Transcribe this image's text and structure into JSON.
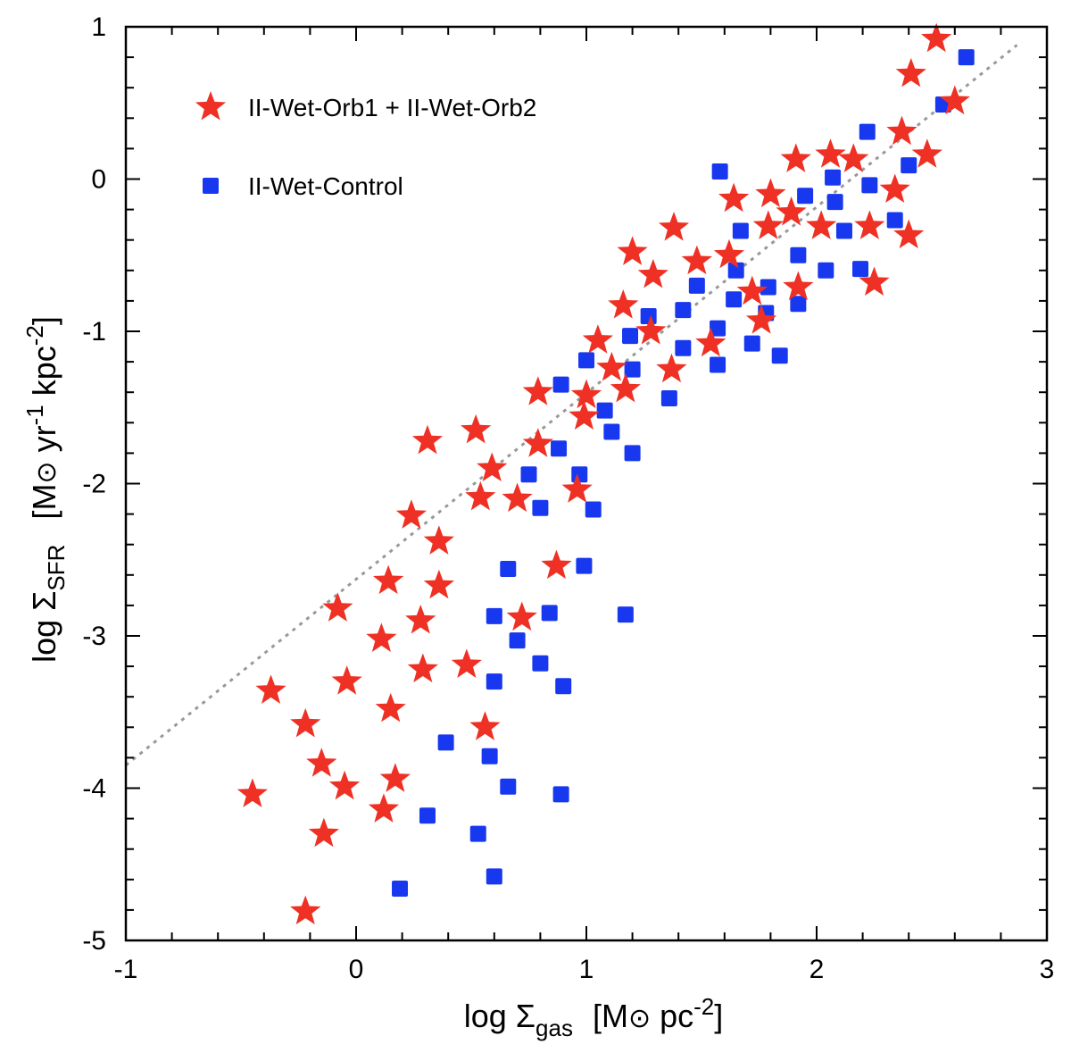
{
  "chart_data": {
    "type": "scatter",
    "title": "",
    "xlabel": {
      "prefix": "log ",
      "symbol": "Σ",
      "subscript": "gas",
      "unit_open": "[M",
      "sun": "⊙",
      "unit_mid": " pc",
      "exp": "-2",
      "unit_close": "]"
    },
    "ylabel": {
      "prefix": "log ",
      "symbol": "Σ",
      "subscript": "SFR",
      "unit_open": "[M",
      "sun": "⊙",
      "unit_mid1": " yr",
      "exp1": "-1",
      "unit_mid2": " kpc",
      "exp2": "-2",
      "unit_close": "]"
    },
    "xlim": [
      -1,
      3
    ],
    "ylim": [
      -5,
      1
    ],
    "x_ticks": [
      -1,
      0,
      1,
      2,
      3
    ],
    "x_tick_labels": [
      "-1",
      "0",
      "1",
      "2",
      "3"
    ],
    "y_ticks": [
      -5,
      -4,
      -3,
      -2,
      -1,
      0,
      1
    ],
    "y_tick_labels": [
      "-5",
      "-4",
      "-3",
      "-2",
      "-1",
      "0",
      "1"
    ],
    "legend_position": "top-left",
    "reference_line": {
      "style": "dotted",
      "color": "#999999",
      "x": [
        -1,
        2.87
      ],
      "y": [
        -3.85,
        0.88
      ]
    },
    "series": [
      {
        "name": "II-Wet-Orb1 + II-Wet-Orb2",
        "marker": "star",
        "color": "#ee3124",
        "points": [
          [
            2.52,
            0.92
          ],
          [
            2.41,
            0.69
          ],
          [
            2.6,
            0.51
          ],
          [
            2.37,
            0.31
          ],
          [
            2.06,
            0.16
          ],
          [
            2.16,
            0.13
          ],
          [
            1.91,
            0.13
          ],
          [
            2.48,
            0.16
          ],
          [
            2.34,
            -0.07
          ],
          [
            1.64,
            -0.13
          ],
          [
            1.8,
            -0.1
          ],
          [
            1.89,
            -0.22
          ],
          [
            2.02,
            -0.31
          ],
          [
            1.79,
            -0.31
          ],
          [
            2.23,
            -0.31
          ],
          [
            2.4,
            -0.37
          ],
          [
            1.38,
            -0.32
          ],
          [
            1.62,
            -0.5
          ],
          [
            1.2,
            -0.48
          ],
          [
            1.48,
            -0.54
          ],
          [
            1.29,
            -0.63
          ],
          [
            1.92,
            -0.71
          ],
          [
            2.25,
            -0.68
          ],
          [
            1.72,
            -0.74
          ],
          [
            1.16,
            -0.83
          ],
          [
            1.76,
            -0.93
          ],
          [
            1.28,
            -1.0
          ],
          [
            1.54,
            -1.08
          ],
          [
            1.05,
            -1.06
          ],
          [
            1.37,
            -1.25
          ],
          [
            1.11,
            -1.24
          ],
          [
            1.17,
            -1.38
          ],
          [
            0.79,
            -1.4
          ],
          [
            1.0,
            -1.42
          ],
          [
            0.99,
            -1.56
          ],
          [
            0.31,
            -1.72
          ],
          [
            0.52,
            -1.65
          ],
          [
            0.79,
            -1.74
          ],
          [
            0.59,
            -1.9
          ],
          [
            0.96,
            -2.04
          ],
          [
            0.54,
            -2.09
          ],
          [
            0.7,
            -2.1
          ],
          [
            0.24,
            -2.21
          ],
          [
            0.36,
            -2.38
          ],
          [
            0.87,
            -2.54
          ],
          [
            0.14,
            -2.64
          ],
          [
            0.36,
            -2.67
          ],
          [
            -0.08,
            -2.82
          ],
          [
            0.28,
            -2.9
          ],
          [
            0.72,
            -2.88
          ],
          [
            0.11,
            -3.02
          ],
          [
            0.29,
            -3.22
          ],
          [
            0.48,
            -3.19
          ],
          [
            -0.37,
            -3.36
          ],
          [
            -0.04,
            -3.3
          ],
          [
            0.15,
            -3.48
          ],
          [
            -0.22,
            -3.58
          ],
          [
            0.56,
            -3.6
          ],
          [
            -0.15,
            -3.84
          ],
          [
            0.17,
            -3.94
          ],
          [
            -0.05,
            -3.99
          ],
          [
            -0.45,
            -4.04
          ],
          [
            0.12,
            -4.14
          ],
          [
            -0.14,
            -4.3
          ],
          [
            -0.22,
            -4.81
          ]
        ]
      },
      {
        "name": "II-Wet-Control",
        "marker": "square",
        "color": "#1838f0",
        "points": [
          [
            2.65,
            0.8
          ],
          [
            2.55,
            0.49
          ],
          [
            2.22,
            0.31
          ],
          [
            2.4,
            0.09
          ],
          [
            1.58,
            0.05
          ],
          [
            2.07,
            0.01
          ],
          [
            2.23,
            -0.04
          ],
          [
            1.95,
            -0.11
          ],
          [
            2.08,
            -0.15
          ],
          [
            1.67,
            -0.34
          ],
          [
            2.12,
            -0.34
          ],
          [
            2.34,
            -0.27
          ],
          [
            1.92,
            -0.5
          ],
          [
            1.65,
            -0.6
          ],
          [
            2.04,
            -0.6
          ],
          [
            2.19,
            -0.59
          ],
          [
            1.48,
            -0.7
          ],
          [
            1.79,
            -0.71
          ],
          [
            1.64,
            -0.79
          ],
          [
            1.92,
            -0.82
          ],
          [
            1.42,
            -0.86
          ],
          [
            1.78,
            -0.88
          ],
          [
            1.27,
            -0.9
          ],
          [
            1.57,
            -0.98
          ],
          [
            1.19,
            -1.03
          ],
          [
            1.72,
            -1.08
          ],
          [
            1.42,
            -1.11
          ],
          [
            1.84,
            -1.16
          ],
          [
            1.0,
            -1.19
          ],
          [
            1.57,
            -1.22
          ],
          [
            1.2,
            -1.25
          ],
          [
            0.89,
            -1.35
          ],
          [
            1.36,
            -1.44
          ],
          [
            1.08,
            -1.52
          ],
          [
            1.11,
            -1.66
          ],
          [
            0.88,
            -1.77
          ],
          [
            1.2,
            -1.8
          ],
          [
            0.75,
            -1.94
          ],
          [
            0.97,
            -1.94
          ],
          [
            0.8,
            -2.16
          ],
          [
            1.03,
            -2.17
          ],
          [
            0.66,
            -2.56
          ],
          [
            0.99,
            -2.54
          ],
          [
            0.6,
            -2.87
          ],
          [
            0.84,
            -2.85
          ],
          [
            1.17,
            -2.86
          ],
          [
            0.7,
            -3.03
          ],
          [
            0.8,
            -3.18
          ],
          [
            0.6,
            -3.3
          ],
          [
            0.9,
            -3.33
          ],
          [
            0.39,
            -3.7
          ],
          [
            0.58,
            -3.79
          ],
          [
            0.66,
            -3.99
          ],
          [
            0.89,
            -4.04
          ],
          [
            0.31,
            -4.18
          ],
          [
            0.53,
            -4.3
          ],
          [
            0.6,
            -4.58
          ],
          [
            0.19,
            -4.66
          ]
        ]
      }
    ],
    "legend": [
      {
        "label": "II-Wet-Orb1 + II-Wet-Orb2",
        "marker": "star",
        "color": "#ee3124"
      },
      {
        "label": "II-Wet-Control",
        "marker": "square",
        "color": "#1838f0"
      }
    ]
  }
}
